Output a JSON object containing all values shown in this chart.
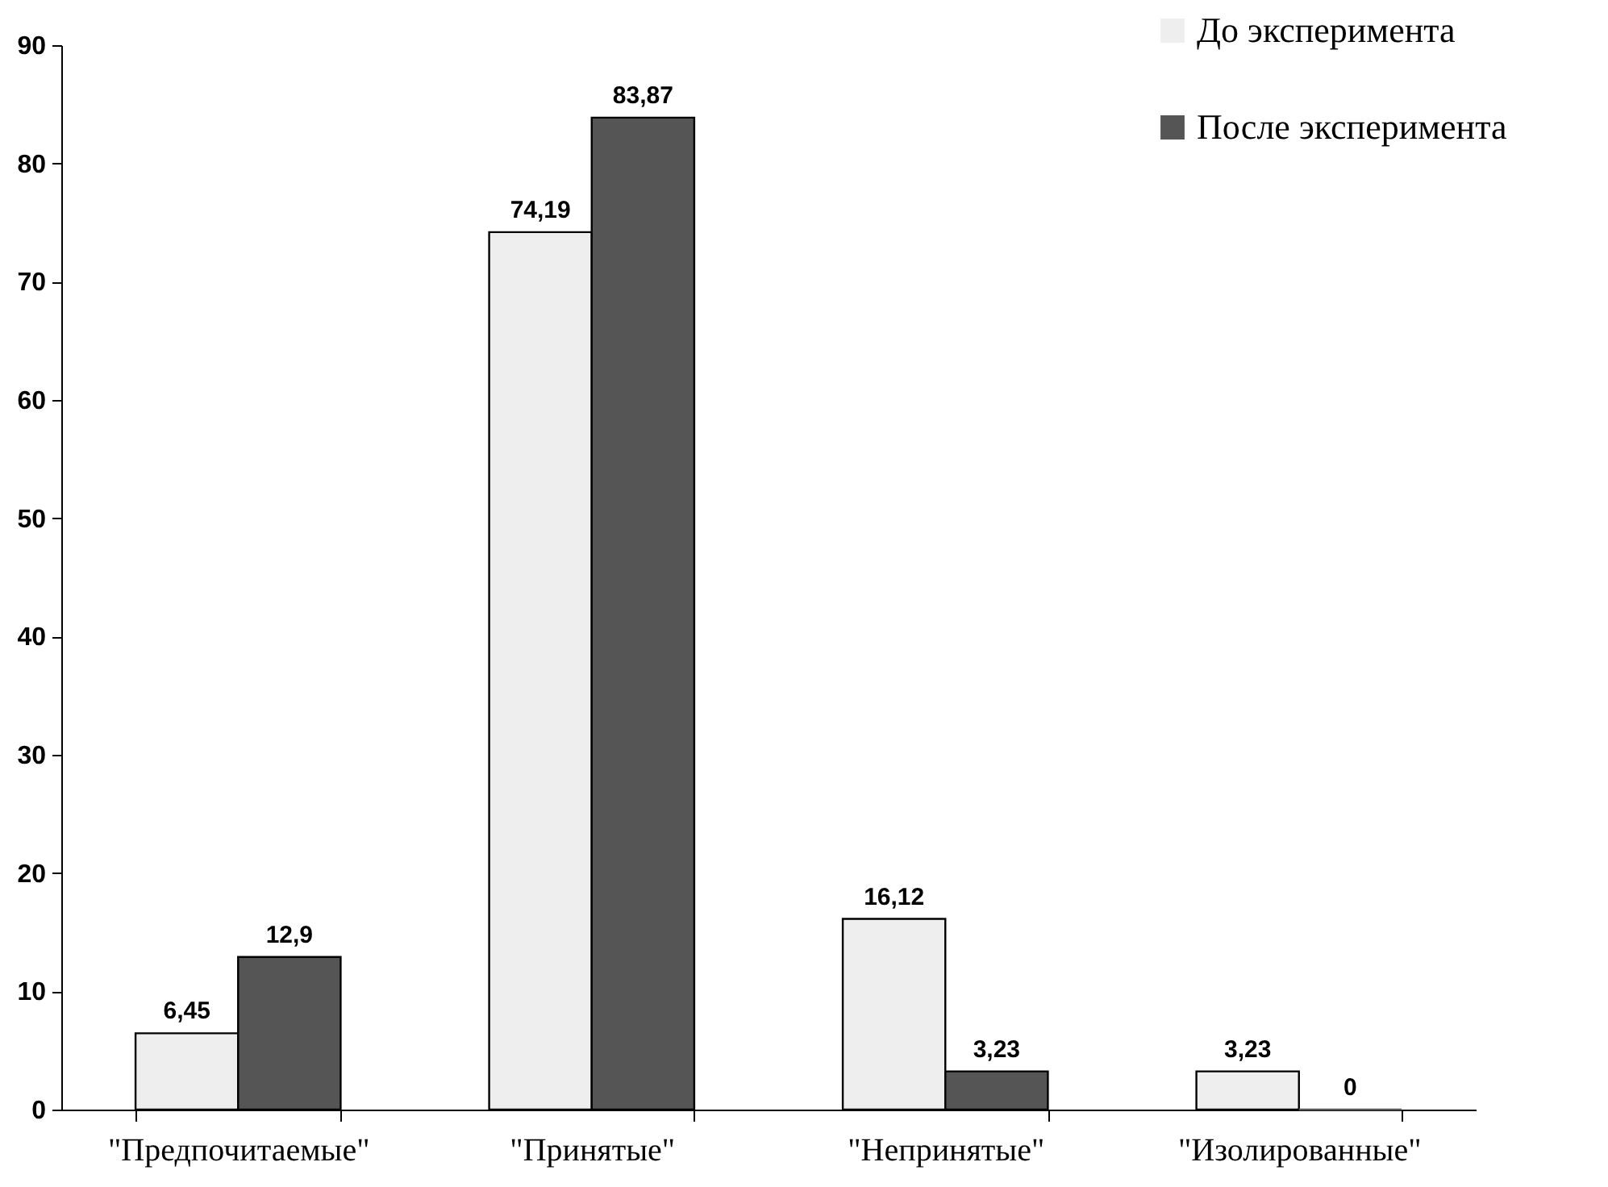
{
  "chart_data": {
    "type": "bar",
    "categories": [
      "\"Предпочитаемые\"",
      "\"Принятые\"",
      "\"Непринятые\"",
      "\"Изолированные\""
    ],
    "series": [
      {
        "name": "До эксперимента",
        "color": "#eeeeee",
        "values": [
          6.45,
          74.19,
          16.12,
          3.23
        ],
        "value_labels": [
          "6,45",
          "74,19",
          "16,12",
          "3,23"
        ]
      },
      {
        "name": "После эксперимента",
        "color": "#555555",
        "values": [
          12.9,
          83.87,
          3.23,
          0
        ],
        "value_labels": [
          "12,9",
          "83,87",
          "3,23",
          "0"
        ]
      }
    ],
    "ylim": [
      0,
      90
    ],
    "yticks": [
      0,
      10,
      20,
      30,
      40,
      50,
      60,
      70,
      80,
      90
    ],
    "grid": false,
    "legend": "top right"
  }
}
